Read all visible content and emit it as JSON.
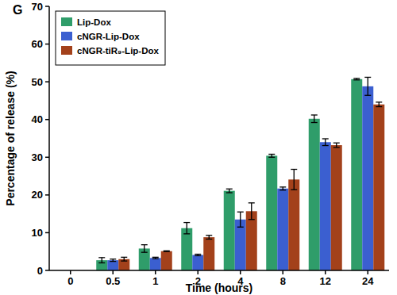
{
  "chart_data": {
    "type": "bar",
    "title": "G",
    "x_label": "Time (hours)",
    "y_label": "Percentage of release (%)",
    "categories": [
      "0",
      "0.5",
      "1",
      "2",
      "4",
      "8",
      "12",
      "24"
    ],
    "series": [
      {
        "name": "Lip-Dox",
        "color": "#2f9d6a",
        "values": [
          null,
          2.7,
          5.8,
          11.2,
          21.1,
          30.4,
          40.2,
          50.7
        ],
        "errors": [
          null,
          0.7,
          1.0,
          1.5,
          0.5,
          0.4,
          1.0,
          0.2
        ]
      },
      {
        "name": "cNGR-Lip-Dox",
        "color": "#3b5fd0",
        "values": [
          null,
          2.7,
          3.3,
          4.1,
          13.5,
          21.7,
          34.0,
          48.8
        ],
        "errors": [
          null,
          0.3,
          0.2,
          0.2,
          2.0,
          0.4,
          0.9,
          2.4
        ]
      },
      {
        "name": "cNGR-tiR₉-Lip-Dox",
        "color": "#a3411b",
        "values": [
          null,
          3.0,
          5.1,
          8.8,
          15.7,
          24.1,
          33.2,
          44.0
        ],
        "errors": [
          null,
          0.5,
          0.1,
          0.5,
          2.2,
          2.7,
          0.6,
          0.6
        ]
      }
    ],
    "ylim": [
      0,
      70
    ],
    "yticks": [
      0,
      10,
      20,
      30,
      40,
      50,
      60,
      70
    ],
    "legend": "upper left",
    "grid": false
  }
}
